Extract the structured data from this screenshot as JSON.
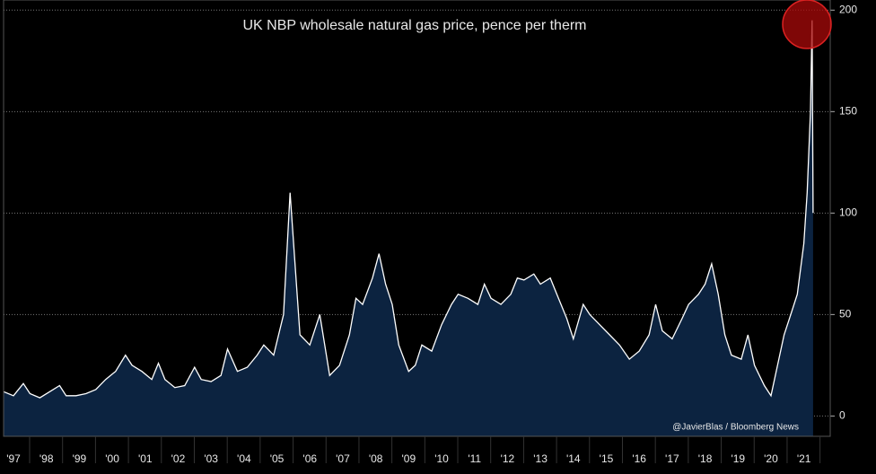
{
  "chart_data": {
    "type": "area",
    "title": "UK NBP wholesale natural gas price, pence per therm",
    "source": "@JavierBlas / Bloomberg News",
    "x": [
      1997.2,
      1997.5,
      1997.8,
      1998.0,
      1998.3,
      1998.6,
      1998.9,
      1999.1,
      1999.4,
      1999.7,
      2000.0,
      2000.3,
      2000.6,
      2000.9,
      2001.1,
      2001.4,
      2001.7,
      2001.9,
      2002.1,
      2002.4,
      2002.7,
      2003.0,
      2003.2,
      2003.5,
      2003.8,
      2004.0,
      2004.3,
      2004.6,
      2004.9,
      2005.1,
      2005.4,
      2005.7,
      2005.9,
      2006.05,
      2006.2,
      2006.5,
      2006.8,
      2006.95,
      2007.1,
      2007.4,
      2007.7,
      2007.9,
      2008.1,
      2008.4,
      2008.6,
      2008.8,
      2009.0,
      2009.2,
      2009.5,
      2009.7,
      2009.9,
      2010.2,
      2010.5,
      2010.8,
      2011.0,
      2011.3,
      2011.6,
      2011.8,
      2012.0,
      2012.3,
      2012.6,
      2012.8,
      2013.0,
      2013.3,
      2013.5,
      2013.8,
      2014.0,
      2014.3,
      2014.5,
      2014.8,
      2015.0,
      2015.3,
      2015.6,
      2015.9,
      2016.2,
      2016.5,
      2016.8,
      2017.0,
      2017.2,
      2017.5,
      2017.8,
      2018.0,
      2018.3,
      2018.5,
      2018.7,
      2018.9,
      2019.1,
      2019.3,
      2019.6,
      2019.8,
      2020.0,
      2020.3,
      2020.5,
      2020.7,
      2020.9,
      2021.1,
      2021.3,
      2021.5,
      2021.6,
      2021.7,
      2021.75,
      2021.78
    ],
    "values": [
      12,
      10,
      16,
      11,
      9,
      12,
      15,
      10,
      10,
      11,
      13,
      18,
      22,
      30,
      25,
      22,
      18,
      26,
      18,
      14,
      15,
      24,
      18,
      17,
      20,
      33,
      22,
      24,
      30,
      35,
      30,
      50,
      110,
      75,
      40,
      35,
      50,
      35,
      20,
      25,
      40,
      58,
      55,
      68,
      80,
      65,
      55,
      35,
      22,
      25,
      35,
      32,
      45,
      55,
      60,
      58,
      55,
      65,
      58,
      55,
      60,
      68,
      67,
      70,
      65,
      68,
      60,
      48,
      38,
      55,
      50,
      45,
      40,
      35,
      28,
      32,
      40,
      55,
      42,
      38,
      48,
      55,
      60,
      65,
      75,
      60,
      40,
      30,
      28,
      40,
      25,
      15,
      10,
      25,
      40,
      50,
      60,
      85,
      110,
      150,
      195,
      100
    ],
    "color": "#ffffff",
    "area_color": "#0c2340",
    "xlim": [
      1997.2,
      2022.3
    ],
    "xticks": [
      {
        "value": 1997.5,
        "label": "'97"
      },
      {
        "value": 1998.5,
        "label": "'98"
      },
      {
        "value": 1999.5,
        "label": "'99"
      },
      {
        "value": 2000.5,
        "label": "'00"
      },
      {
        "value": 2001.5,
        "label": "'01"
      },
      {
        "value": 2002.5,
        "label": "'02"
      },
      {
        "value": 2003.5,
        "label": "'03"
      },
      {
        "value": 2004.5,
        "label": "'04"
      },
      {
        "value": 2005.5,
        "label": "'05"
      },
      {
        "value": 2006.5,
        "label": "'06"
      },
      {
        "value": 2007.5,
        "label": "'07"
      },
      {
        "value": 2008.5,
        "label": "'08"
      },
      {
        "value": 2009.5,
        "label": "'09"
      },
      {
        "value": 2010.5,
        "label": "'10"
      },
      {
        "value": 2011.5,
        "label": "'11"
      },
      {
        "value": 2012.5,
        "label": "'12"
      },
      {
        "value": 2013.5,
        "label": "'13"
      },
      {
        "value": 2014.5,
        "label": "'14"
      },
      {
        "value": 2015.5,
        "label": "'15"
      },
      {
        "value": 2016.5,
        "label": "'16"
      },
      {
        "value": 2017.5,
        "label": "'17"
      },
      {
        "value": 2018.5,
        "label": "'18"
      },
      {
        "value": 2019.5,
        "label": "'19"
      },
      {
        "value": 2020.5,
        "label": "'20"
      },
      {
        "value": 2021.5,
        "label": "'21"
      }
    ],
    "ylim": [
      -10,
      205
    ],
    "yticks": [
      0,
      50,
      100,
      150,
      200
    ],
    "grid": true
  }
}
